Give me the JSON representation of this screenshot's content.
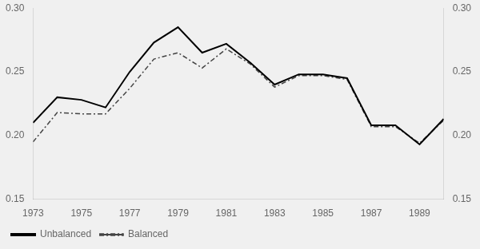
{
  "chart_data": {
    "type": "line",
    "x": [
      1973,
      1974,
      1975,
      1976,
      1977,
      1978,
      1979,
      1980,
      1981,
      1982,
      1983,
      1984,
      1985,
      1986,
      1987,
      1988,
      1989,
      1990
    ],
    "series": [
      {
        "name": "Unbalanced",
        "color": "#000000",
        "line_style": "solid",
        "values": [
          0.21,
          0.23,
          0.228,
          0.222,
          0.25,
          0.273,
          0.285,
          0.265,
          0.272,
          0.257,
          0.24,
          0.248,
          0.248,
          0.245,
          0.208,
          0.208,
          0.193,
          0.213
        ]
      },
      {
        "name": "Balanced",
        "color": "#444444",
        "line_style": "dashdot",
        "values": [
          0.195,
          0.218,
          0.217,
          0.217,
          0.237,
          0.26,
          0.265,
          0.253,
          0.268,
          0.256,
          0.238,
          0.247,
          0.247,
          0.244,
          0.207,
          0.207,
          0.194,
          0.212
        ]
      }
    ],
    "xlim": [
      1973,
      1990
    ],
    "xticks": [
      1973,
      1975,
      1977,
      1979,
      1981,
      1983,
      1985,
      1987,
      1989
    ],
    "ylim": [
      0.15,
      0.3
    ],
    "yticks": [
      0.15,
      {
        "value": 0.2,
        "label": "0.20"
      },
      0.25,
      {
        "value": 0.3,
        "label": "0.30"
      }
    ],
    "y2lim": [
      0.15,
      0.3
    ],
    "y2ticks": [
      0.15,
      {
        "value": 0.2,
        "label": "0.20"
      },
      0.25,
      {
        "value": 0.3,
        "label": "0.30"
      }
    ],
    "legend": "lower left",
    "grid": false
  }
}
